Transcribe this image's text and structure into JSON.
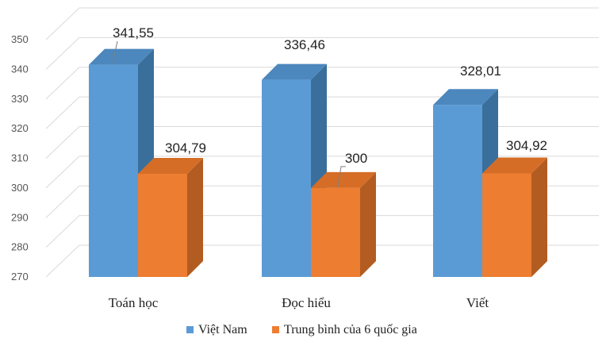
{
  "chart_data": {
    "type": "bar",
    "categories": [
      "Toán học",
      "Đọc hiểu",
      "Viết"
    ],
    "series": [
      {
        "name": "Việt Nam",
        "values": [
          341.55,
          336.46,
          328.01
        ],
        "labels": [
          "341,55",
          "336,46",
          "328,01"
        ]
      },
      {
        "name": "Trung bình của 6 quốc gia",
        "values": [
          304.79,
          300,
          304.92
        ],
        "labels": [
          "304,79",
          "300",
          "304,92"
        ]
      }
    ],
    "yticks": [
      "270",
      "280",
      "290",
      "300",
      "310",
      "320",
      "330",
      "340",
      "350"
    ],
    "ylim": [
      270,
      350
    ],
    "grid": true,
    "legend": "bottom",
    "title": "",
    "xlabel": "",
    "ylabel": ""
  },
  "colors": {
    "series": [
      {
        "front": "#5b9bd5",
        "side": "#3a6f9c",
        "top": "#4c87bd"
      },
      {
        "front": "#ed7d31",
        "side": "#b25c21",
        "top": "#d56d27"
      }
    ],
    "grid": "#d9d9d9"
  }
}
